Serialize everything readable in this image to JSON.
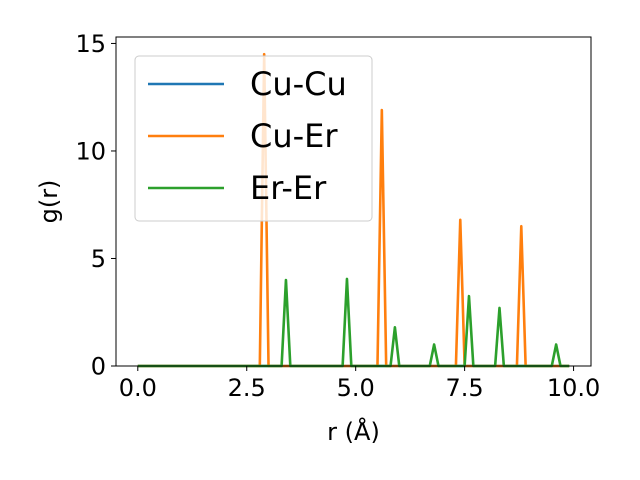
{
  "chart_data": {
    "type": "line",
    "xlabel": "r (Å)",
    "ylabel": "g(r)",
    "xlim": [
      -0.5,
      10.4
    ],
    "ylim": [
      0,
      15.3
    ],
    "xticks": [
      0.0,
      2.5,
      5.0,
      7.5,
      10.0
    ],
    "xtick_labels": [
      "0.0",
      "2.5",
      "5.0",
      "7.5",
      "10.0"
    ],
    "yticks": [
      0,
      5,
      10,
      15
    ],
    "ytick_labels": [
      "0",
      "5",
      "10",
      "15"
    ],
    "grid": false,
    "legend_position": "top-left",
    "series": [
      {
        "name": "Cu-Cu",
        "color": "#1f77b4",
        "x": [
          0.0,
          9.9
        ],
        "y": [
          0.0,
          0.0
        ]
      },
      {
        "name": "Cu-Er",
        "color": "#ff7f0e",
        "x": [
          0.0,
          2.8,
          2.9,
          3.0,
          5.5,
          5.6,
          5.7,
          7.3,
          7.4,
          7.5,
          8.7,
          8.8,
          8.9,
          9.9
        ],
        "y": [
          0.0,
          0.0,
          14.5,
          0.0,
          0.0,
          11.9,
          0.0,
          0.0,
          6.8,
          0.0,
          0.0,
          6.5,
          0.0,
          0.0
        ]
      },
      {
        "name": "Er-Er",
        "color": "#2ca02c",
        "x": [
          0.0,
          3.3,
          3.4,
          3.5,
          4.7,
          4.8,
          4.9,
          5.8,
          5.9,
          6.0,
          6.7,
          6.8,
          6.9,
          7.5,
          7.6,
          7.7,
          8.2,
          8.3,
          8.4,
          9.5,
          9.6,
          9.7,
          9.9
        ],
        "y": [
          0.0,
          0.0,
          4.0,
          0.0,
          0.0,
          4.05,
          0.0,
          0.0,
          1.8,
          0.0,
          0.0,
          1.0,
          0.0,
          0.0,
          3.25,
          0.0,
          0.0,
          2.7,
          0.0,
          0.0,
          1.0,
          0.0,
          0.0
        ]
      }
    ]
  }
}
